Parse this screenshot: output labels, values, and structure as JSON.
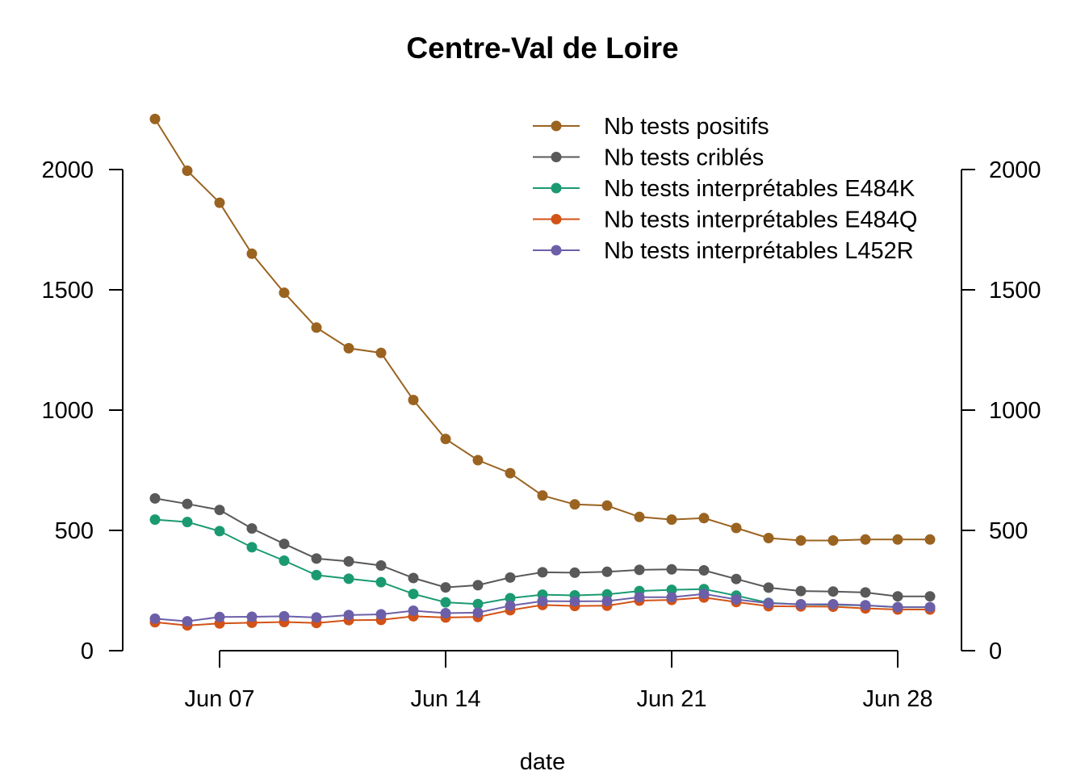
{
  "chart_data": {
    "type": "line",
    "title": "Centre-Val de Loire",
    "xlabel": "date",
    "ylabel": "",
    "ylim": [
      0,
      2000
    ],
    "y_ticks": [
      0,
      500,
      1000,
      1500,
      2000
    ],
    "y_tick_labels": [
      "0",
      "500",
      "1000",
      "1500",
      "2000"
    ],
    "secondary_y_ticks": [
      0,
      500,
      1000,
      1500,
      2000
    ],
    "secondary_y_tick_labels": [
      "0",
      "500",
      "1000",
      "1500",
      "2000"
    ],
    "x_ticks": [
      "2021-06-07",
      "2021-06-14",
      "2021-06-21",
      "2021-06-28"
    ],
    "x_tick_labels": [
      "Jun 07",
      "Jun 14",
      "Jun 21",
      "Jun 28"
    ],
    "x": [
      "2021-06-05",
      "2021-06-06",
      "2021-06-07",
      "2021-06-08",
      "2021-06-09",
      "2021-06-10",
      "2021-06-11",
      "2021-06-12",
      "2021-06-13",
      "2021-06-14",
      "2021-06-15",
      "2021-06-16",
      "2021-06-17",
      "2021-06-18",
      "2021-06-19",
      "2021-06-20",
      "2021-06-21",
      "2021-06-22",
      "2021-06-23",
      "2021-06-24",
      "2021-06-25",
      "2021-06-26",
      "2021-06-27",
      "2021-06-28",
      "2021-06-29"
    ],
    "grid": false,
    "legend_position": "top-right",
    "series": [
      {
        "name": "Nb tests positifs",
        "color": "#9A6320",
        "values": [
          2210,
          1995,
          1862,
          1650,
          1488,
          1343,
          1257,
          1238,
          1042,
          880,
          792,
          738,
          645,
          608,
          603,
          556,
          545,
          551,
          510,
          468,
          458,
          458,
          462,
          462,
          462
        ]
      },
      {
        "name": "Nb tests criblés",
        "color": "#595959",
        "values": [
          633,
          610,
          585,
          508,
          444,
          383,
          371,
          354,
          302,
          263,
          272,
          304,
          326,
          324,
          328,
          336,
          338,
          334,
          298,
          262,
          248,
          246,
          242,
          226,
          226
        ]
      },
      {
        "name": "Nb tests interprétables E484K",
        "color": "#1B9A72",
        "values": [
          545,
          535,
          497,
          430,
          374,
          314,
          299,
          285,
          236,
          201,
          194,
          218,
          233,
          230,
          234,
          248,
          253,
          256,
          229,
          199,
          192,
          191,
          188,
          181,
          181
        ]
      },
      {
        "name": "Nb tests interprétables E484Q",
        "color": "#D35216",
        "values": [
          118,
          105,
          113,
          116,
          119,
          115,
          127,
          128,
          143,
          138,
          140,
          168,
          190,
          186,
          187,
          208,
          211,
          221,
          202,
          185,
          184,
          183,
          176,
          171,
          171
        ]
      },
      {
        "name": "Nb tests interprétables L452R",
        "color": "#6C5FA8",
        "values": [
          133,
          122,
          140,
          141,
          143,
          138,
          148,
          151,
          166,
          156,
          158,
          187,
          206,
          205,
          206,
          222,
          222,
          236,
          213,
          197,
          193,
          193,
          189,
          181,
          181
        ]
      }
    ]
  }
}
